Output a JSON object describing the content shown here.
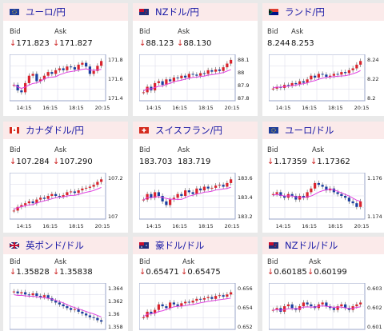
{
  "labels": {
    "bid": "Bid",
    "ask": "Ask"
  },
  "colors": {
    "header_bg": "#fbeaea",
    "link": "#1a1aa6",
    "down_arrow": "#cc2222",
    "candle_up": "#d9232d",
    "candle_down": "#1b3fa0",
    "ma_line": "#e040e0",
    "grid": "#d8d8e8"
  },
  "cards": [
    {
      "pair": "ユーロ/円",
      "flag": "eu-flag-icon",
      "direction": "down",
      "bid": "171.823",
      "ask": "171.827",
      "arrow": "↓",
      "y_ticks": [
        "171.8",
        "171.6",
        "171.4"
      ],
      "x_ticks": [
        "14:15",
        "16:15",
        "18:15",
        "20:15"
      ]
    },
    {
      "pair": "NZドル/円",
      "flag": "nz-flag-icon",
      "direction": "down",
      "bid": "88.123",
      "ask": "88.130",
      "arrow": "↓",
      "y_ticks": [
        "88.1",
        "88",
        "87.9",
        "87.8"
      ],
      "x_ticks": [
        "14:15",
        "16:15",
        "18:15",
        "20:15"
      ]
    },
    {
      "pair": "ランド/円",
      "flag": "za-flag-icon",
      "direction": "none",
      "bid": "8.244",
      "ask": "8.253",
      "arrow": "",
      "y_ticks": [
        "8.24",
        "8.22",
        "8.2"
      ],
      "x_ticks": [
        "14:15",
        "16:15",
        "18:15",
        "20:15"
      ]
    },
    {
      "pair": "カナダドル/円",
      "flag": "ca-flag-icon",
      "direction": "down",
      "bid": "107.284",
      "ask": "107.290",
      "arrow": "↓",
      "y_ticks": [
        "107.2",
        "107"
      ],
      "x_ticks": [
        "14:15",
        "16:15",
        "18:15",
        "20:15"
      ]
    },
    {
      "pair": "スイスフラン/円",
      "flag": "ch-flag-icon",
      "direction": "none",
      "bid": "183.703",
      "ask": "183.719",
      "arrow": "",
      "y_ticks": [
        "183.6",
        "183.4",
        "183.2"
      ],
      "x_ticks": [
        "14:15",
        "16:15",
        "18:15",
        "20:15"
      ]
    },
    {
      "pair": "ユーロ/ドル",
      "flag": "eu-flag-icon",
      "direction": "down",
      "bid": "1.17359",
      "ask": "1.17362",
      "arrow": "↓",
      "y_ticks": [
        "1.176",
        "1.174"
      ],
      "x_ticks": [
        "14:15",
        "16:15",
        "18:15",
        "20:15"
      ]
    },
    {
      "pair": "英ポンド/ドル",
      "flag": "gb-flag-icon",
      "direction": "down",
      "bid": "1.35828",
      "ask": "1.35838",
      "arrow": "↓",
      "y_ticks": [
        "1.364",
        "1.362",
        "1.36",
        "1.358"
      ],
      "x_ticks": []
    },
    {
      "pair": "豪ドル/ドル",
      "flag": "au-flag-icon",
      "direction": "down",
      "bid": "0.65471",
      "ask": "0.65475",
      "arrow": "↓",
      "y_ticks": [
        "0.656",
        "0.654",
        "0.652"
      ],
      "x_ticks": []
    },
    {
      "pair": "NZドル/ドル",
      "flag": "nz-flag-icon",
      "direction": "down",
      "bid": "0.60185",
      "ask": "0.60199",
      "arrow": "↓",
      "y_ticks": [
        "0.603",
        "0.602",
        "0.601"
      ],
      "x_ticks": []
    }
  ]
}
